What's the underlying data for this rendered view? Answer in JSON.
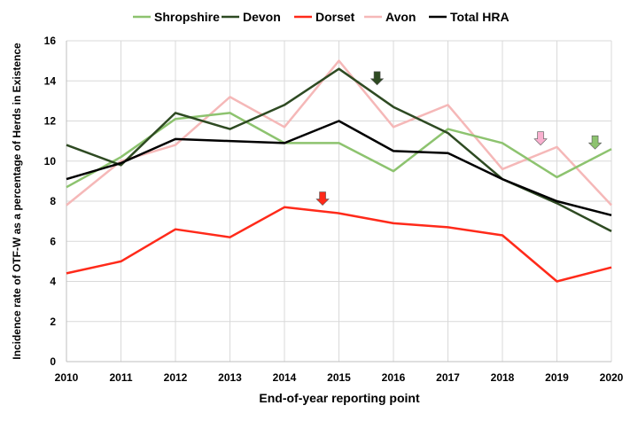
{
  "chart_data": {
    "type": "line",
    "title": "",
    "xlabel": "End-of-year reporting point",
    "ylabel": "Incidence rate of OTF-W as a percentage of Herds in Existence",
    "x": [
      "2010",
      "2011",
      "2012",
      "2013",
      "2014",
      "2015",
      "2016",
      "2017",
      "2018",
      "2019",
      "2020"
    ],
    "ylim": [
      0,
      16
    ],
    "yticks": [
      "0",
      "2",
      "4",
      "6",
      "8",
      "10",
      "12",
      "14",
      "16"
    ],
    "grid": true,
    "legend_position": "top",
    "series": [
      {
        "name": "Shropshire",
        "color": "#8dc36f",
        "values": [
          8.7,
          10.2,
          12.1,
          12.4,
          10.9,
          10.9,
          9.5,
          11.6,
          10.9,
          9.2,
          10.6
        ]
      },
      {
        "name": "Devon",
        "color": "#2e4a22",
        "values": [
          10.8,
          9.8,
          12.4,
          11.6,
          12.8,
          14.6,
          12.7,
          11.4,
          9.1,
          7.9,
          6.5
        ]
      },
      {
        "name": "Dorset",
        "color": "#ff2a1a",
        "values": [
          4.4,
          5.0,
          6.6,
          6.2,
          7.7,
          7.4,
          6.9,
          6.7,
          6.3,
          4.0,
          4.7
        ]
      },
      {
        "name": "Avon",
        "color": "#f5b8b8",
        "values": [
          7.8,
          10.0,
          10.8,
          13.2,
          11.7,
          15.0,
          11.7,
          12.8,
          9.6,
          10.7,
          7.8
        ]
      },
      {
        "name": "Total HRA",
        "color": "#000000",
        "values": [
          9.1,
          9.9,
          11.1,
          11.0,
          10.9,
          12.0,
          10.5,
          10.4,
          9.1,
          8.0,
          7.3
        ]
      }
    ],
    "annotations": [
      {
        "type": "arrow",
        "series": "Devon",
        "color": "#2e4a22",
        "x": 2015.7,
        "y": 13.8
      },
      {
        "type": "arrow",
        "series": "Dorset",
        "color": "#ff2a1a",
        "x": 2014.7,
        "y": 7.8
      },
      {
        "type": "arrow",
        "series": "Avon",
        "color": "#f9b0cf",
        "x": 2018.7,
        "y": 10.8
      },
      {
        "type": "arrow",
        "series": "Shropshire",
        "color": "#8dc36f",
        "x": 2019.7,
        "y": 10.6
      }
    ]
  }
}
